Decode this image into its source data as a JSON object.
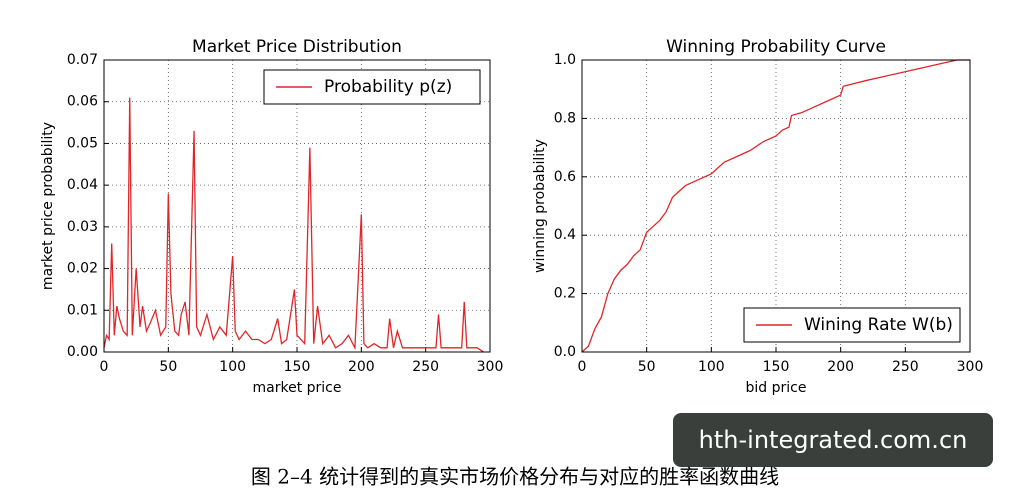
{
  "chart_data": [
    {
      "type": "line",
      "title": "Market Price Distribution",
      "xlabel": "market price",
      "ylabel": "market price probability",
      "x": [
        0,
        2,
        4,
        6,
        8,
        10,
        12,
        15,
        18,
        20,
        22,
        25,
        28,
        30,
        33,
        36,
        40,
        44,
        48,
        50,
        52,
        55,
        58,
        60,
        63,
        66,
        70,
        72,
        75,
        80,
        85,
        90,
        95,
        100,
        102,
        105,
        110,
        115,
        120,
        125,
        130,
        135,
        138,
        142,
        146,
        148,
        150,
        153,
        156,
        160,
        163,
        166,
        170,
        175,
        180,
        185,
        190,
        195,
        200,
        202,
        205,
        210,
        215,
        220,
        222,
        225,
        228,
        232,
        240,
        250,
        258,
        260,
        262,
        270,
        278,
        280,
        282,
        290,
        295
      ],
      "series": [
        {
          "name": "Probability p(z)",
          "color": "#e0262a",
          "values": [
            0.001,
            0.004,
            0.003,
            0.026,
            0.004,
            0.011,
            0.008,
            0.005,
            0.004,
            0.061,
            0.004,
            0.02,
            0.006,
            0.011,
            0.005,
            0.007,
            0.01,
            0.004,
            0.006,
            0.038,
            0.014,
            0.005,
            0.004,
            0.009,
            0.012,
            0.004,
            0.053,
            0.006,
            0.004,
            0.009,
            0.003,
            0.006,
            0.004,
            0.023,
            0.005,
            0.003,
            0.005,
            0.003,
            0.003,
            0.002,
            0.003,
            0.008,
            0.002,
            0.003,
            0.011,
            0.015,
            0.004,
            0.003,
            0.002,
            0.049,
            0.002,
            0.011,
            0.002,
            0.004,
            0.001,
            0.002,
            0.004,
            0.001,
            0.033,
            0.002,
            0.001,
            0.002,
            0.001,
            0.001,
            0.008,
            0.001,
            0.005,
            0.001,
            0.001,
            0.001,
            0.001,
            0.009,
            0.001,
            0.001,
            0.001,
            0.012,
            0.001,
            0.001,
            0.0
          ]
        }
      ],
      "xlim": [
        0,
        300
      ],
      "xticks": [
        0,
        50,
        100,
        150,
        200,
        250,
        300
      ],
      "ylim": [
        0,
        0.07
      ],
      "yticks": [
        {
          "value": 0,
          "label": "0.00"
        },
        {
          "value": 0.01,
          "label": "0.01"
        },
        {
          "value": 0.02,
          "label": "0.02"
        },
        {
          "value": 0.03,
          "label": "0.03"
        },
        {
          "value": 0.04,
          "label": "0.04"
        },
        {
          "value": 0.05,
          "label": "0.05"
        },
        {
          "value": 0.06,
          "label": "0.06"
        },
        {
          "value": 0.07,
          "label": "0.07"
        }
      ],
      "grid": true,
      "legend": "upper right"
    },
    {
      "type": "line",
      "title": "Winning Probability Curve",
      "xlabel": "bid price",
      "ylabel": "winning probability",
      "x": [
        0,
        5,
        10,
        15,
        20,
        25,
        30,
        35,
        40,
        45,
        50,
        55,
        60,
        65,
        70,
        75,
        80,
        90,
        100,
        105,
        110,
        120,
        130,
        140,
        150,
        155,
        160,
        162,
        170,
        180,
        190,
        200,
        202,
        220,
        240,
        260,
        280,
        290,
        300
      ],
      "series": [
        {
          "name": "Wining Rate W(b)",
          "color": "#e0262a",
          "values": [
            0,
            0.02,
            0.08,
            0.12,
            0.2,
            0.25,
            0.28,
            0.3,
            0.33,
            0.35,
            0.41,
            0.43,
            0.45,
            0.48,
            0.53,
            0.55,
            0.57,
            0.59,
            0.61,
            0.63,
            0.65,
            0.67,
            0.69,
            0.72,
            0.74,
            0.76,
            0.77,
            0.81,
            0.82,
            0.84,
            0.86,
            0.88,
            0.91,
            0.93,
            0.95,
            0.97,
            0.99,
            1.0,
            1.0
          ]
        }
      ],
      "xlim": [
        0,
        300
      ],
      "xticks": [
        0,
        50,
        100,
        150,
        200,
        250,
        300
      ],
      "ylim": [
        0,
        1
      ],
      "yticks": [
        {
          "value": 0,
          "label": "0.0"
        },
        {
          "value": 0.2,
          "label": "0.2"
        },
        {
          "value": 0.4,
          "label": "0.4"
        },
        {
          "value": 0.6,
          "label": "0.6"
        },
        {
          "value": 0.8,
          "label": "0.8"
        },
        {
          "value": 1,
          "label": "1.0"
        }
      ],
      "grid": true,
      "legend": "lower right"
    }
  ],
  "caption": "图 2–4 统计得到的真实市场价格分布与对应的胜率函数曲线",
  "watermark": "hth-integrated.com.cn"
}
